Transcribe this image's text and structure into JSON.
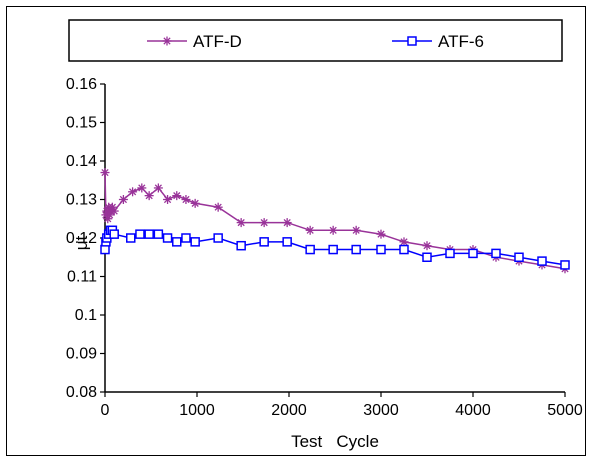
{
  "chart_data": {
    "type": "line",
    "title": "",
    "xlabel": "Test   Cycle",
    "ylabel": "μt",
    "xlim": [
      0,
      5000
    ],
    "ylim": [
      0.08,
      0.16
    ],
    "x_ticks": [
      0,
      1000,
      2000,
      3000,
      4000,
      5000
    ],
    "x_tick_labels": [
      "0",
      "1000",
      "2000",
      "3000",
      "4000",
      "5000"
    ],
    "y_ticks": [
      0.08,
      0.09,
      0.1,
      0.11,
      0.12,
      0.13,
      0.14,
      0.15,
      0.16
    ],
    "y_tick_labels": [
      "0.08",
      "0.09",
      "0.1",
      "0.11",
      "0.12",
      "0.13",
      "0.14",
      "0.15",
      "0.16"
    ],
    "grid": false,
    "legend_position": "top",
    "series": [
      {
        "name": "ATF-D",
        "color": "#993399",
        "marker": "asterisk",
        "points": [
          [
            0,
            0.137
          ],
          [
            10,
            0.126
          ],
          [
            20,
            0.127
          ],
          [
            30,
            0.125
          ],
          [
            40,
            0.128
          ],
          [
            50,
            0.126
          ],
          [
            60,
            0.127
          ],
          [
            80,
            0.128
          ],
          [
            100,
            0.127
          ],
          [
            200,
            0.13
          ],
          [
            300,
            0.132
          ],
          [
            400,
            0.133
          ],
          [
            480,
            0.131
          ],
          [
            580,
            0.133
          ],
          [
            680,
            0.13
          ],
          [
            780,
            0.131
          ],
          [
            880,
            0.13
          ],
          [
            980,
            0.129
          ],
          [
            1230,
            0.128
          ],
          [
            1480,
            0.124
          ],
          [
            1730,
            0.124
          ],
          [
            1980,
            0.124
          ],
          [
            2230,
            0.122
          ],
          [
            2480,
            0.122
          ],
          [
            2730,
            0.122
          ],
          [
            3000,
            0.121
          ],
          [
            3250,
            0.119
          ],
          [
            3500,
            0.118
          ],
          [
            3750,
            0.117
          ],
          [
            4000,
            0.117
          ],
          [
            4250,
            0.115
          ],
          [
            4500,
            0.114
          ],
          [
            4750,
            0.113
          ],
          [
            5000,
            0.112
          ]
        ]
      },
      {
        "name": "ATF-6",
        "color": "#0000ff",
        "marker": "square",
        "points": [
          [
            0,
            0.117
          ],
          [
            10,
            0.119
          ],
          [
            20,
            0.12
          ],
          [
            40,
            0.121
          ],
          [
            60,
            0.122
          ],
          [
            80,
            0.122
          ],
          [
            100,
            0.121
          ],
          [
            280,
            0.12
          ],
          [
            380,
            0.121
          ],
          [
            480,
            0.121
          ],
          [
            580,
            0.121
          ],
          [
            680,
            0.12
          ],
          [
            780,
            0.119
          ],
          [
            880,
            0.12
          ],
          [
            980,
            0.119
          ],
          [
            1230,
            0.12
          ],
          [
            1480,
            0.118
          ],
          [
            1730,
            0.119
          ],
          [
            1980,
            0.119
          ],
          [
            2230,
            0.117
          ],
          [
            2480,
            0.117
          ],
          [
            2730,
            0.117
          ],
          [
            3000,
            0.117
          ],
          [
            3250,
            0.117
          ],
          [
            3500,
            0.115
          ],
          [
            3750,
            0.116
          ],
          [
            4000,
            0.116
          ],
          [
            4250,
            0.116
          ],
          [
            4500,
            0.115
          ],
          [
            4750,
            0.114
          ],
          [
            5000,
            0.113
          ]
        ]
      }
    ]
  }
}
